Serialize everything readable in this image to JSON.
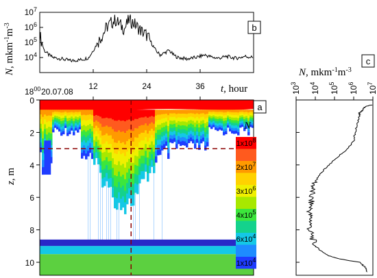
{
  "chart_data": [
    {
      "panel": "b",
      "type": "line",
      "xlabel_var": "t",
      "xlabel_unit": "hour",
      "ylabel": "N, mkm⁻¹m⁻³",
      "x_ticks": [
        12,
        24,
        36
      ],
      "x_tick_labels": [
        "12",
        "24",
        "36"
      ],
      "x_start_label": "18",
      "x_start_sup": "00",
      "x_date_label": "20.07.08",
      "xlim": [
        0,
        48
      ],
      "y_scale": "log",
      "ylim": [
        1000,
        10000000
      ],
      "y_ticks": [
        {
          "base": "10",
          "exp": "4",
          "value": 10000
        },
        {
          "base": "10",
          "exp": "5",
          "value": 100000
        },
        {
          "base": "10",
          "exp": "6",
          "value": 1000000
        },
        {
          "base": "10",
          "exp": "7",
          "value": 10000000
        }
      ],
      "x": [
        0,
        1,
        2,
        3,
        4,
        5,
        6,
        7,
        8,
        9,
        10,
        11,
        12,
        13,
        14,
        15,
        16,
        17,
        18,
        19,
        20,
        21,
        22,
        23,
        24,
        25,
        26,
        27,
        28,
        29,
        30,
        31,
        32,
        33,
        34,
        35,
        36,
        37,
        38,
        39,
        40,
        41,
        42,
        43,
        44,
        45,
        46,
        47,
        48
      ],
      "y": [
        300000,
        30000,
        15000,
        10000,
        9000,
        8000,
        7000,
        6000,
        6500,
        7000,
        8000,
        10000,
        30000,
        100000,
        300000,
        1000000,
        2000000,
        3000000,
        1500000,
        800000,
        3000000,
        2000000,
        1000000,
        500000,
        300000,
        100000,
        30000,
        15000,
        20000,
        30000,
        15000,
        10000,
        9000,
        8000,
        9000,
        10000,
        12000,
        15000,
        12000,
        10000,
        9000,
        10000,
        12000,
        10000,
        9000,
        10000,
        12000,
        11000,
        10000
      ]
    },
    {
      "panel": "a",
      "type": "heatmap",
      "ylabel": "z, m",
      "y_ticks": [
        0,
        2,
        4,
        6,
        8,
        10
      ],
      "ylim": [
        10.8,
        0
      ],
      "xlim": [
        0,
        48
      ],
      "legend_title": "N",
      "legend_levels": [
        {
          "base": "1x10",
          "exp": "8",
          "color": "#ff0000"
        },
        {
          "base": "",
          "exp": "",
          "color": "#ff5a1e"
        },
        {
          "base": "2x10",
          "exp": "7",
          "color": "#ff9a00"
        },
        {
          "base": "",
          "exp": "",
          "color": "#ffd200"
        },
        {
          "base": "3x10",
          "exp": "6",
          "color": "#f0f000"
        },
        {
          "base": "",
          "exp": "",
          "color": "#a8e800"
        },
        {
          "base": "4x10",
          "exp": "5",
          "color": "#3ce63c"
        },
        {
          "base": "",
          "exp": "",
          "color": "#14d28c"
        },
        {
          "base": "6x10",
          "exp": "4",
          "color": "#14c8e6"
        },
        {
          "base": "",
          "exp": "",
          "color": "#1e8cff"
        },
        {
          "base": "1x10",
          "exp": "4",
          "color": "#1e3cff"
        }
      ],
      "reference_height_m": 3,
      "reference_time_h": 20.5
    },
    {
      "panel": "c",
      "type": "line",
      "xlabel": "N, mkm⁻¹m⁻³",
      "x_scale": "log",
      "xlim": [
        1000,
        10000000
      ],
      "x_ticks": [
        {
          "base": "10",
          "exp": "3",
          "value": 1000
        },
        {
          "base": "10",
          "exp": "4",
          "value": 10000
        },
        {
          "base": "10",
          "exp": "5",
          "value": 100000
        },
        {
          "base": "10",
          "exp": "6",
          "value": 1000000
        },
        {
          "base": "10",
          "exp": "7",
          "value": 10000000
        }
      ],
      "ylim": [
        10.8,
        0
      ],
      "z": [
        0.3,
        0.4,
        0.6,
        0.8,
        1.0,
        1.5,
        2.0,
        2.5,
        3.0,
        3.5,
        4.0,
        4.5,
        5.0,
        5.5,
        6.0,
        6.5,
        7.0,
        7.5,
        8.0,
        8.5,
        9.0,
        9.3,
        9.6,
        9.8,
        10.0,
        10.3,
        10.6
      ],
      "N": [
        9000000,
        4000000,
        3000000,
        2000000,
        2000000,
        1500000,
        1200000,
        1000000,
        500000,
        150000,
        50000,
        20000,
        10000,
        7000,
        6000,
        6000,
        5000,
        6000,
        5000,
        7000,
        10000,
        20000,
        50000,
        200000,
        2000000,
        4000000,
        5000000
      ]
    }
  ],
  "labels": {
    "panel_a": "a",
    "panel_b": "b",
    "panel_c": "c"
  },
  "colors": {
    "axis": "#000000",
    "reference_line": "#8b0000",
    "surface_red": "#ff0000",
    "sea_green": "#5cd040"
  }
}
